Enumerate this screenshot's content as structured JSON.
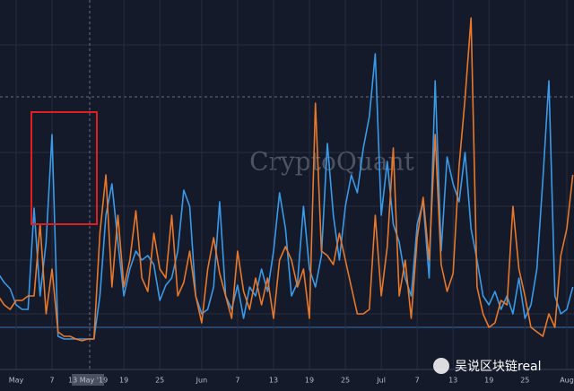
{
  "chart_data": {
    "type": "line",
    "categories": [
      null,
      null,
      null,
      "May",
      null,
      null,
      null,
      null,
      null,
      "7",
      null,
      null,
      null,
      null,
      null,
      "13 May '19",
      null,
      null,
      null,
      null,
      null,
      "19",
      null,
      null,
      null,
      null,
      null,
      "25",
      null,
      null,
      null,
      null,
      null,
      null,
      "Jun",
      null,
      null,
      null,
      null,
      null,
      "7",
      null,
      null,
      null,
      null,
      null,
      "13",
      null,
      null,
      null,
      null,
      null,
      "19",
      null,
      null,
      null,
      null,
      null,
      "25",
      null,
      null,
      null,
      null,
      null,
      "Jul",
      null,
      null,
      null,
      null,
      null,
      "7",
      null,
      null,
      null,
      null,
      null,
      "13",
      null,
      null,
      null,
      null,
      null,
      "19",
      null,
      null,
      null,
      null,
      null,
      "25",
      null,
      null,
      null,
      null,
      null,
      null,
      "Aug",
      null
    ],
    "series": [
      {
        "color": "#3a9ae8",
        "values": [
          75,
          65,
          58,
          40,
          35,
          35,
          148,
          50,
          110,
          230,
          5,
          2,
          2,
          2,
          2,
          2,
          2,
          50,
          140,
          175,
          110,
          50,
          80,
          100,
          90,
          95,
          85,
          45,
          62,
          70,
          100,
          168,
          150,
          50,
          30,
          35,
          60,
          155,
          50,
          35,
          62,
          25,
          60,
          50,
          80,
          55,
          100,
          165,
          125,
          50,
          65,
          150,
          80,
          60,
          95,
          220,
          140,
          90,
          150,
          185,
          165,
          215,
          250,
          320,
          140,
          200,
          130,
          110,
          70,
          50,
          130,
          155,
          70,
          290,
          100,
          205,
          175,
          155,
          210,
          125,
          90,
          50,
          40,
          55,
          35,
          50,
          30,
          70,
          25,
          40,
          80,
          180,
          290,
          50,
          30,
          35,
          60
        ]
      },
      {
        "color": "#e8782a",
        "values": [
          50,
          40,
          35,
          45,
          45,
          50,
          50,
          130,
          30,
          80,
          10,
          5,
          5,
          2,
          0,
          2,
          2,
          120,
          185,
          60,
          140,
          60,
          90,
          145,
          70,
          55,
          120,
          80,
          70,
          140,
          50,
          65,
          100,
          50,
          20,
          80,
          115,
          75,
          50,
          25,
          100,
          55,
          35,
          70,
          40,
          70,
          25,
          90,
          105,
          90,
          60,
          80,
          25,
          265,
          100,
          95,
          85,
          120,
          90,
          60,
          30,
          30,
          35,
          140,
          50,
          105,
          215,
          50,
          90,
          25,
          115,
          160,
          90,
          230,
          85,
          55,
          75,
          195,
          270,
          360,
          60,
          30,
          15,
          20,
          45,
          40,
          150,
          80,
          50,
          15,
          10,
          5,
          30,
          15,
          95,
          125,
          185
        ]
      }
    ],
    "ylim": [
      0,
      380
    ],
    "watermarks": [
      "CryptoQuant",
      "吴说区块链real"
    ]
  }
}
